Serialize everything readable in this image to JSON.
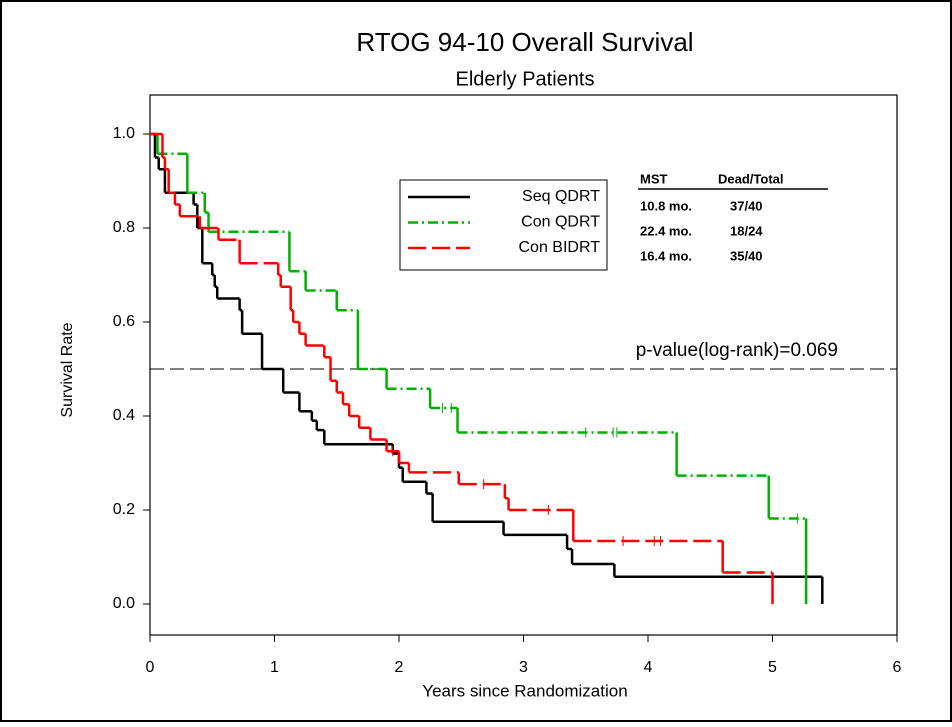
{
  "chart_data": {
    "type": "step",
    "title": "RTOG 94-10 Overall Survival",
    "subtitle": "Elderly Patients",
    "x_label": "Years since Randomization",
    "y_label": "Survival Rate",
    "xlim": [
      0,
      6
    ],
    "ylim": [
      -0.066,
      1.083
    ],
    "xticks": [
      0,
      1,
      2,
      3,
      4,
      5,
      6
    ],
    "yticks": [
      {
        "value": 0,
        "label": "0.0"
      },
      0.2,
      0.4,
      0.6,
      0.8,
      {
        "value": 1,
        "label": "1.0"
      }
    ],
    "hline": 0.5,
    "annotation": "p-value(log-rank)=0.069",
    "table": {
      "header": [
        "MST",
        "Dead/Total"
      ],
      "rows": [
        [
          "10.8 mo.",
          "37/40"
        ],
        [
          "22.4 mo.",
          "18/24"
        ],
        [
          "16.4 mo.",
          "35/40"
        ]
      ]
    },
    "series": [
      {
        "name": "Seq QDRT",
        "color": "#000000",
        "dash": "none",
        "x": [
          0,
          0.04,
          0.07,
          0.12,
          0.35,
          0.38,
          0.42,
          0.5,
          0.52,
          0.54,
          0.72,
          0.74,
          0.9,
          1.07,
          1.2,
          1.3,
          1.34,
          1.4,
          1.95,
          2.0,
          2.03,
          2.22,
          2.27,
          2.84,
          3.35,
          3.39,
          3.73,
          5.4
        ],
        "values": [
          1,
          0.95,
          0.925,
          0.875,
          0.85,
          0.8,
          0.725,
          0.7,
          0.675,
          0.65,
          0.625,
          0.575,
          0.5,
          0.45,
          0.41,
          0.39,
          0.37,
          0.34,
          0.32,
          0.29,
          0.26,
          0.235,
          0.175,
          0.147,
          0.117,
          0.085,
          0.058,
          0
        ]
      },
      {
        "name": "Con QDRT",
        "color": "#00b000",
        "dash": "10,4,2,4",
        "x": [
          0,
          0.06,
          0.3,
          0.44,
          0.47,
          1.12,
          1.25,
          1.5,
          1.67,
          1.9,
          2.25,
          2.47,
          4.23,
          4.97,
          5.27
        ],
        "values": [
          1,
          0.958,
          0.875,
          0.833,
          0.792,
          0.708,
          0.667,
          0.625,
          0.5,
          0.458,
          0.417,
          0.365,
          0.273,
          0.182,
          0
        ],
        "censored_x": [
          2.35,
          2.42,
          3.5,
          3.72,
          3.75,
          5.2
        ]
      },
      {
        "name": "Con BIDRT",
        "color": "#ff0000",
        "dash": "18,6",
        "x": [
          0,
          0.1,
          0.12,
          0.15,
          0.2,
          0.24,
          0.4,
          0.55,
          0.72,
          1.03,
          1.05,
          1.13,
          1.15,
          1.2,
          1.25,
          1.4,
          1.45,
          1.5,
          1.55,
          1.6,
          1.68,
          1.77,
          1.9,
          2.0,
          2.08,
          2.48,
          2.85,
          2.88,
          3.4,
          4.6,
          5.0
        ],
        "values": [
          1,
          0.95,
          0.925,
          0.875,
          0.85,
          0.825,
          0.8,
          0.775,
          0.725,
          0.7,
          0.675,
          0.625,
          0.6,
          0.575,
          0.55,
          0.525,
          0.475,
          0.45,
          0.425,
          0.4,
          0.375,
          0.35,
          0.325,
          0.3,
          0.28,
          0.255,
          0.225,
          0.2,
          0.134,
          0.067,
          0
        ],
        "censored_x": [
          1.95,
          2.68,
          3.2,
          3.8,
          4.05,
          4.1
        ]
      }
    ]
  }
}
